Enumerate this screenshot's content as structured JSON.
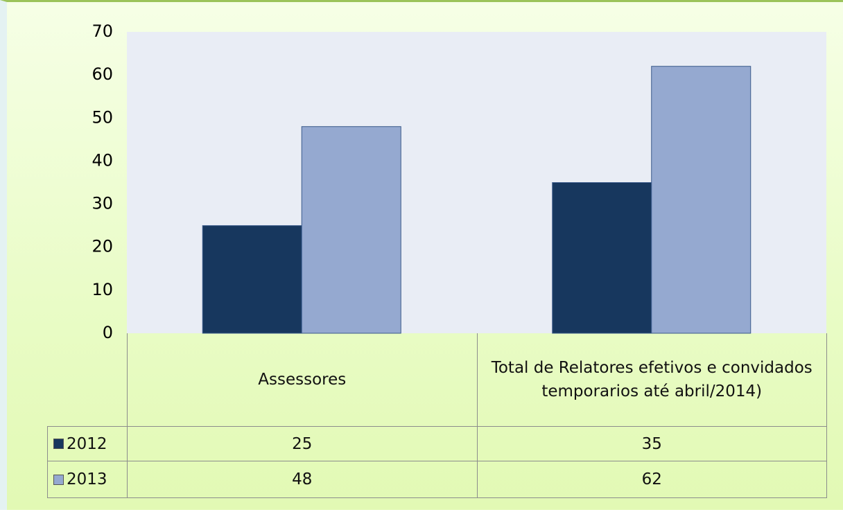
{
  "chart_data": {
    "type": "bar",
    "categories": [
      "Assessores",
      "Total de Relatores efetivos e convidados temporarios  até abril/2014)"
    ],
    "series": [
      {
        "name": "2012",
        "color": "#17375e",
        "values": [
          25,
          35
        ]
      },
      {
        "name": "2013",
        "color": "#95a9d0",
        "values": [
          48,
          62
        ]
      }
    ],
    "ylim": [
      0,
      70
    ],
    "yticks": [
      0,
      10,
      20,
      30,
      40,
      50,
      60,
      70
    ],
    "grid": false,
    "data_table": true
  }
}
